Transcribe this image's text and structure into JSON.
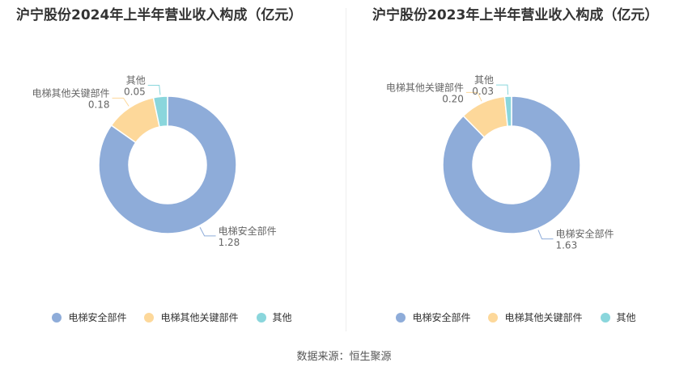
{
  "colors": {
    "elevator_safety": "#8eacd9",
    "other_key": "#fdd89a",
    "other": "#8ad6dc"
  },
  "legend_labels": [
    "电梯安全部件",
    "电梯其他关键部件",
    "其他"
  ],
  "source_text": "数据来源：恒生聚源",
  "chart_data": [
    {
      "type": "pie",
      "title": "沪宁股份2024年上半年营业收入构成（亿元）",
      "slices": [
        {
          "name": "电梯安全部件",
          "value": 1.28,
          "label": "1.28"
        },
        {
          "name": "电梯其他关键部件",
          "value": 0.18,
          "label": "0.18"
        },
        {
          "name": "其他",
          "value": 0.05,
          "label": "0.05"
        }
      ]
    },
    {
      "type": "pie",
      "title": "沪宁股份2023年上半年营业收入构成（亿元）",
      "slices": [
        {
          "name": "电梯安全部件",
          "value": 1.63,
          "label": "1.63"
        },
        {
          "name": "电梯其他关键部件",
          "value": 0.2,
          "label": "0.20"
        },
        {
          "name": "其他",
          "value": 0.03,
          "label": "0.03"
        }
      ]
    }
  ]
}
